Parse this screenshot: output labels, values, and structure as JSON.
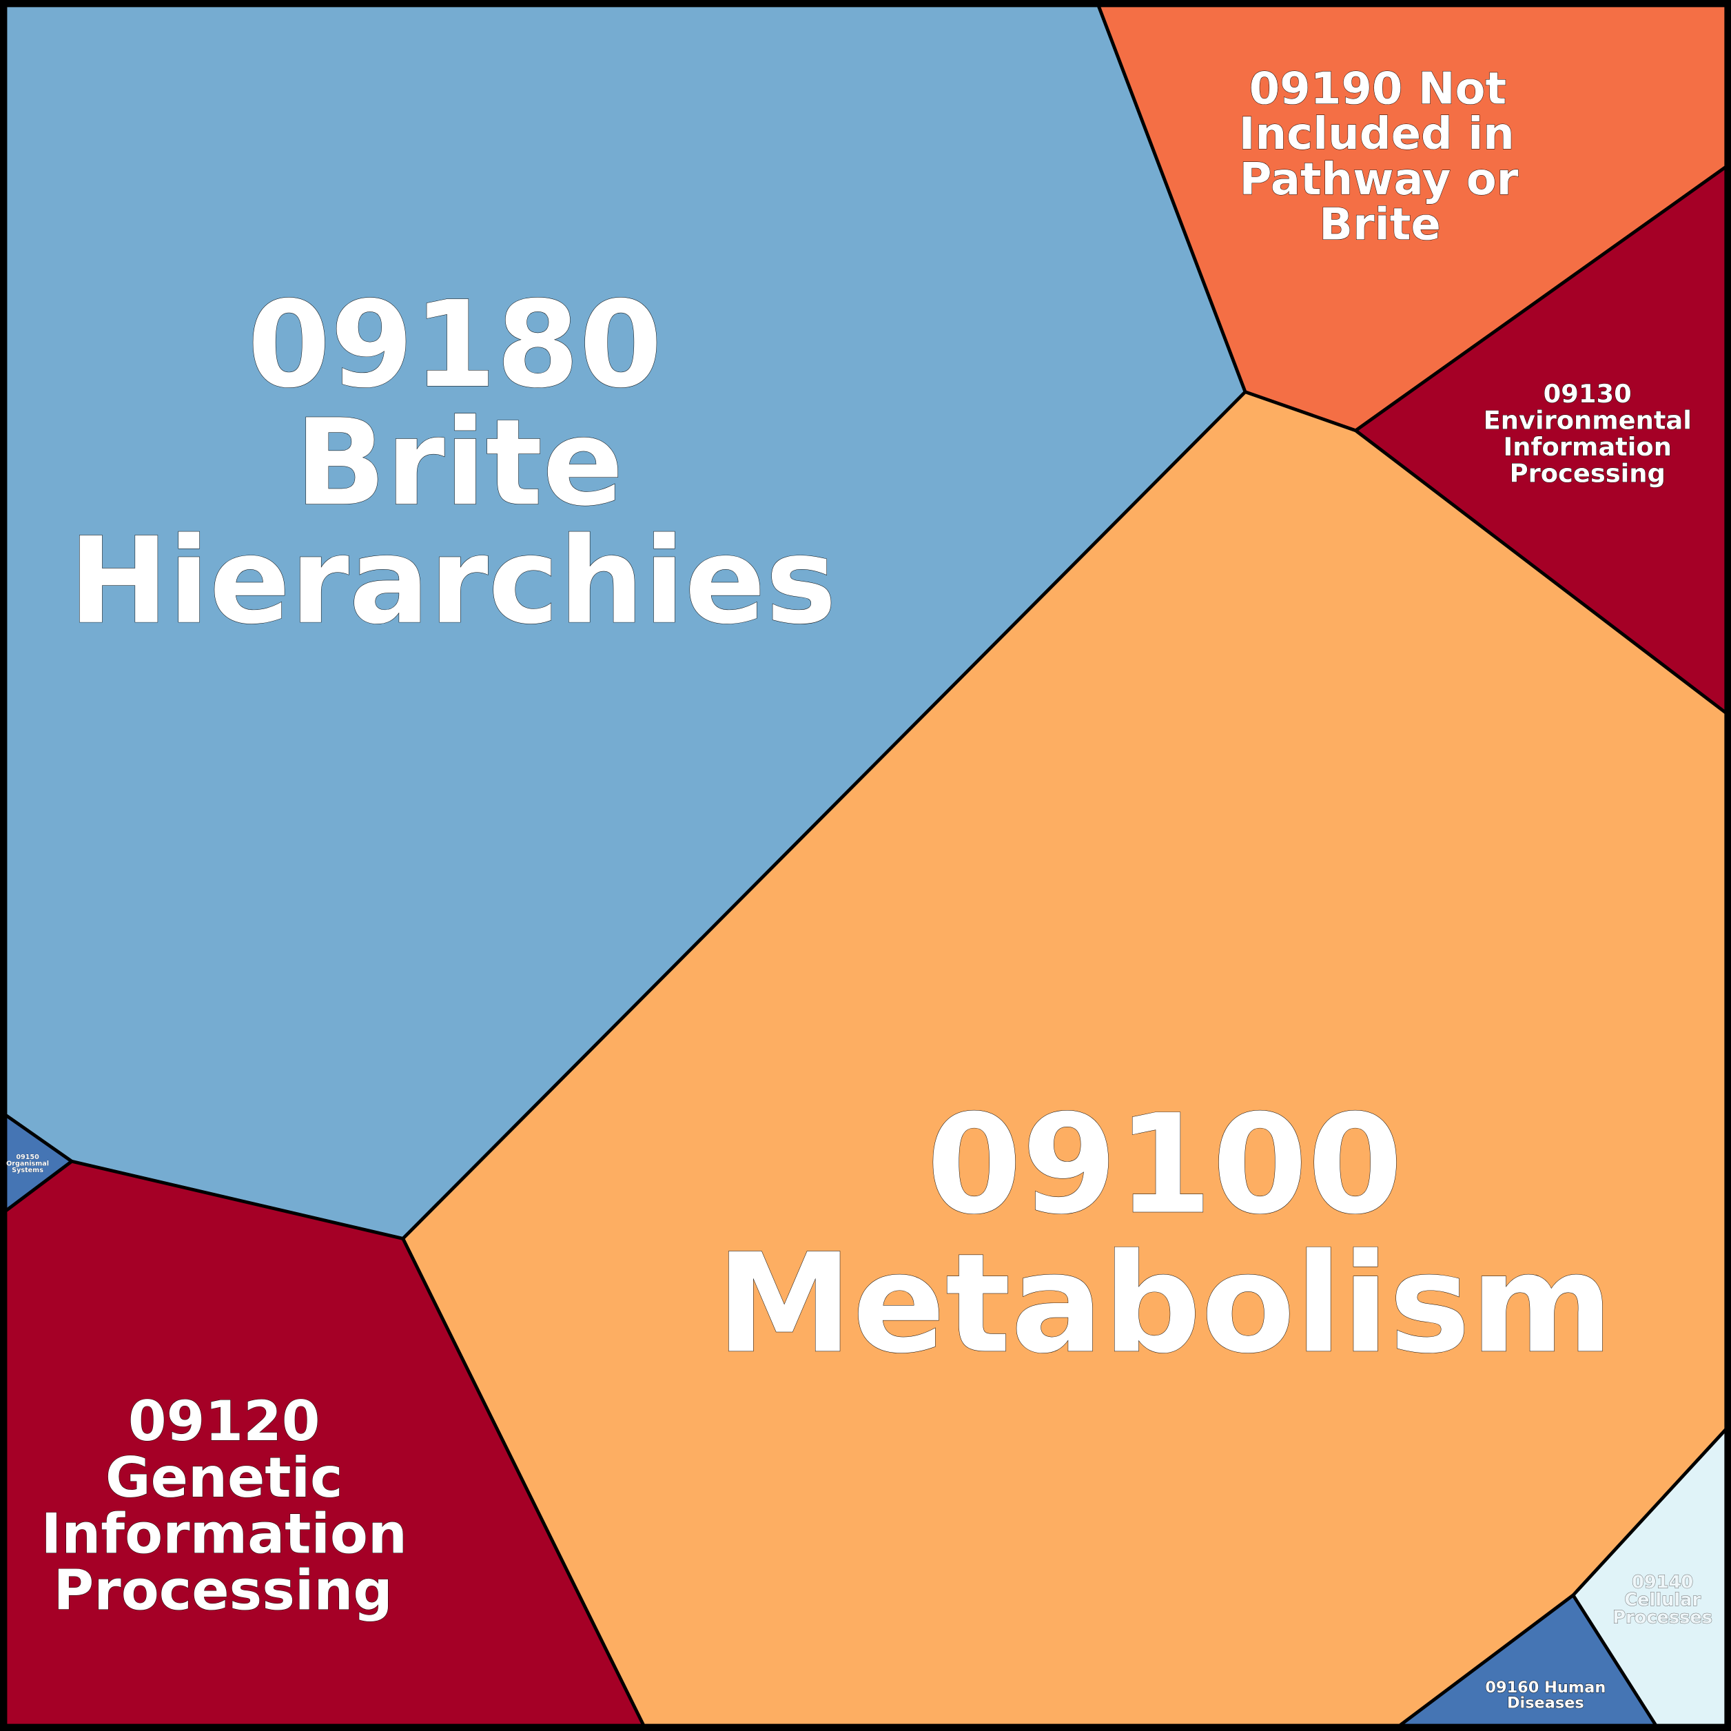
{
  "cells": [
    {
      "label_lines": [
        "09180",
        "Brite",
        "Hierarchies"
      ]
    },
    {
      "label_lines": [
        "09100",
        "Metabolism"
      ]
    },
    {
      "label_lines": [
        "09190 Not",
        "Included in",
        "Pathway or",
        "Brite"
      ]
    },
    {
      "label_lines": [
        "09130",
        "Environmental",
        "Information",
        "Processing"
      ]
    },
    {
      "label_lines": [
        "09120",
        "Genetic",
        "Information",
        "Processing"
      ]
    },
    {
      "label_lines": [
        "09140",
        "Cellular",
        "Processes"
      ]
    },
    {
      "label_lines": [
        "09160 Human",
        "Diseases"
      ]
    },
    {
      "label_lines": [
        "09150",
        "Organismal",
        "Systems"
      ]
    }
  ]
}
